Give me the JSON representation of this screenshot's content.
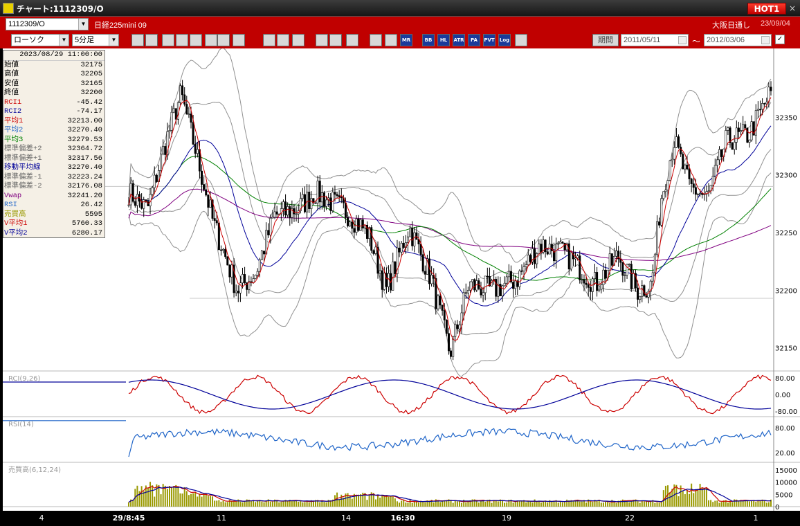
{
  "window": {
    "title": "チャート:1112309/O",
    "hot_label": "HOT1",
    "close_label": "×"
  },
  "symbol_bar": {
    "symbol": "1112309/O",
    "name": "日経225mini 09",
    "exchange": "大阪日通し",
    "date": "23/09/04"
  },
  "toolbar": {
    "chart_type": "ローソク",
    "interval": "5分足",
    "buttons": [
      "search",
      "cursor",
      "magnet",
      "zoom",
      "trendline",
      "fibonacci",
      "arrow",
      "line",
      "select",
      "pen",
      "color",
      "erase",
      "all",
      "pattern",
      "tool",
      "palette",
      "MR",
      "BB",
      "HL",
      "ATR",
      "PA",
      "PVT",
      "Log",
      "export"
    ],
    "period_label": "期間",
    "from_date": "2011/05/11",
    "tilde": "～",
    "to_date": "2012/03/06"
  },
  "info_panel": {
    "datetime": "2023/08/29  11:00:00",
    "rows": [
      {
        "label": "始値",
        "value": "32175",
        "color": "#000000"
      },
      {
        "label": "高値",
        "value": "32205",
        "color": "#000000"
      },
      {
        "label": "安値",
        "value": "32165",
        "color": "#000000"
      },
      {
        "label": "終値",
        "value": "32200",
        "color": "#000000"
      },
      {
        "label": "RCI1",
        "value": "-45.42",
        "color": "#cc0000"
      },
      {
        "label": "RCI2",
        "value": "-74.17",
        "color": "#000099"
      },
      {
        "label": "平均1",
        "value": "32213.00",
        "color": "#cc0000"
      },
      {
        "label": "平均2",
        "value": "32270.40",
        "color": "#1e64c8"
      },
      {
        "label": "平均3",
        "value": "32279.53",
        "color": "#008000"
      },
      {
        "label": "標準偏差+2",
        "value": "32364.72",
        "color": "#666666"
      },
      {
        "label": "標準偏差+1",
        "value": "32317.56",
        "color": "#666666"
      },
      {
        "label": "移動平均線",
        "value": "32270.40",
        "color": "#000099"
      },
      {
        "label": "標準偏差-1",
        "value": "32223.24",
        "color": "#666666"
      },
      {
        "label": "標準偏差-2",
        "value": "32176.08",
        "color": "#666666"
      },
      {
        "label": "Vwap",
        "value": "32241.20",
        "color": "#800080"
      },
      {
        "label": "RSI",
        "value": "26.42",
        "color": "#1e64c8"
      },
      {
        "label": "売買高",
        "value": "5595",
        "color": "#999900"
      },
      {
        "label": "V平均1",
        "value": "5760.33",
        "color": "#cc0000"
      },
      {
        "label": "V平均2",
        "value": "6280.17",
        "color": "#000099"
      }
    ]
  },
  "chart_data": [
    {
      "type": "candlestick",
      "y_ticks": [
        "32350",
        "32300",
        "32250",
        "32200",
        "32150"
      ],
      "ylim": [
        32130,
        32400
      ],
      "x_ticks": [
        "4",
        "29/8:45",
        "11",
        "14",
        "16:30",
        "19",
        "22",
        "1"
      ],
      "series": [
        "平均1",
        "平均2",
        "平均3",
        "標準偏差+2",
        "標準偏差+1",
        "移動平均線",
        "標準偏差-1",
        "標準偏差-2",
        "Vwap"
      ]
    },
    {
      "type": "line",
      "label": "RCI(9,26)",
      "y_ticks": [
        "80.00",
        "0.00",
        "-80.00"
      ],
      "ylim": [
        -100,
        100
      ]
    },
    {
      "type": "line",
      "label": "RSI(14)",
      "y_ticks": [
        "80.00",
        "20.00"
      ],
      "ylim": [
        0,
        100
      ]
    },
    {
      "type": "bar",
      "label": "売買高(6,12,24)",
      "y_ticks": [
        "15000",
        "10000",
        "5000",
        "0"
      ],
      "ylim": [
        0,
        17000
      ]
    }
  ],
  "colors": {
    "accent": "#c00000",
    "up": "#ffffff",
    "down": "#000000",
    "grid": "#c8c8c8"
  }
}
